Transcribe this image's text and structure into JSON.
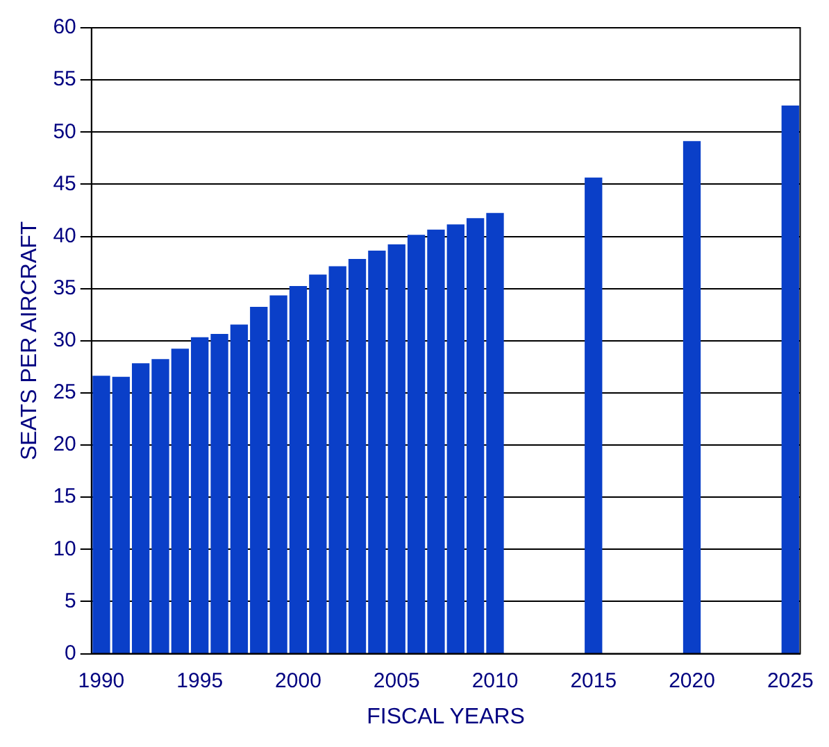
{
  "chart_data": {
    "type": "bar",
    "xlabel": "FISCAL YEARS",
    "ylabel": "SEATS PER AIRCRAFT",
    "x": [
      1990,
      1991,
      1992,
      1993,
      1994,
      1995,
      1996,
      1997,
      1998,
      1999,
      2000,
      2001,
      2002,
      2003,
      2004,
      2005,
      2006,
      2007,
      2008,
      2009,
      2010,
      2015,
      2020,
      2025
    ],
    "values": [
      26.6,
      26.5,
      27.8,
      28.2,
      29.2,
      30.3,
      30.6,
      31.5,
      33.2,
      34.3,
      35.2,
      36.3,
      37.1,
      37.8,
      38.6,
      39.2,
      40.1,
      40.6,
      41.1,
      41.7,
      42.2,
      45.6,
      49.1,
      52.5
    ],
    "color": "#0a3fc8",
    "xlim": [
      1989.5,
      2025.5
    ],
    "xticks": [
      1990,
      1995,
      2000,
      2005,
      2010,
      2015,
      2020,
      2025
    ],
    "ylim": [
      0,
      60
    ],
    "yticks": [
      0,
      5,
      10,
      15,
      20,
      25,
      30,
      35,
      40,
      45,
      50,
      55,
      60
    ],
    "grid": "y",
    "legend": false
  }
}
